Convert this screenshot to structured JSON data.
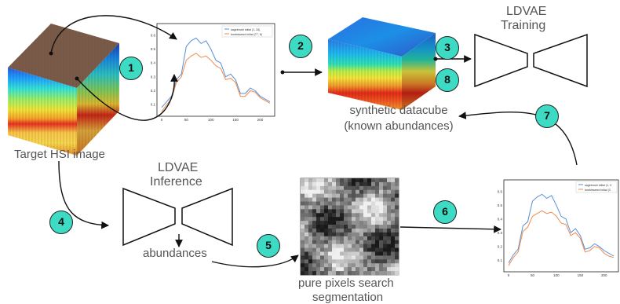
{
  "labels": {
    "target": "Target HSI image",
    "synthetic_line1": "synthetic  datacube",
    "synthetic_line2": "(known abundances)",
    "training_line1": "LDVAE",
    "training_line2": "Training",
    "inference_line1": "LDVAE",
    "inference_line2": "Inference",
    "abundances": "abundances",
    "pure_line1": "pure pixels search",
    "pure_line2": "segmentation"
  },
  "steps": [
    "1",
    "2",
    "3",
    "4",
    "5",
    "6",
    "7",
    "8"
  ],
  "colors": {
    "badge": "#3ddbc3",
    "series_a": "#5b8fd6",
    "series_b": "#f08a4b",
    "text": "#555555"
  },
  "plot1": {
    "legend": [
      "sagebrush initial (1, 33)",
      "tumbleweed initial (77, 6)"
    ],
    "yticks": [
      "0.6",
      "0.5",
      "0.4",
      "0.3",
      "0.2",
      "0.1"
    ],
    "xticks": [
      "0",
      "50",
      "100",
      "150",
      "200"
    ]
  },
  "plot2": {
    "legend": [
      "sagebrush initial (1, 3",
      "tumbleweed initial (3"
    ],
    "yticks": [
      "0.6",
      "0.5",
      "0.4",
      "0.3",
      "0.2",
      "0.1"
    ],
    "xticks": [
      "0",
      "50",
      "100",
      "150",
      "200"
    ]
  },
  "chart_data": [
    {
      "type": "line",
      "x": [
        0,
        10,
        20,
        30,
        40,
        50,
        60,
        70,
        80,
        90,
        100,
        110,
        120,
        130,
        140,
        150,
        160,
        170,
        180,
        190,
        200,
        210,
        220
      ],
      "series": [
        {
          "name": "sagebrush initial (1, 33)",
          "values": [
            0.08,
            0.12,
            0.16,
            0.28,
            0.32,
            0.52,
            0.56,
            0.58,
            0.54,
            0.56,
            0.5,
            0.42,
            0.4,
            0.3,
            0.32,
            0.28,
            0.18,
            0.18,
            0.22,
            0.2,
            0.16,
            0.14,
            0.12
          ]
        },
        {
          "name": "tumbleweed initial (77, 6)",
          "values": [
            0.05,
            0.1,
            0.14,
            0.26,
            0.3,
            0.42,
            0.45,
            0.47,
            0.44,
            0.45,
            0.42,
            0.38,
            0.36,
            0.28,
            0.29,
            0.26,
            0.16,
            0.16,
            0.2,
            0.19,
            0.15,
            0.13,
            0.11
          ]
        }
      ],
      "ylim": [
        0.05,
        0.65
      ],
      "xlim": [
        0,
        220
      ]
    },
    {
      "type": "line",
      "x": [
        0,
        10,
        20,
        30,
        40,
        50,
        60,
        70,
        80,
        90,
        100,
        110,
        120,
        130,
        140,
        150,
        160,
        170,
        180,
        190,
        200,
        210,
        220
      ],
      "series": [
        {
          "name": "sagebrush initial (1, 3",
          "values": [
            0.08,
            0.14,
            0.18,
            0.35,
            0.38,
            0.53,
            0.56,
            0.58,
            0.55,
            0.57,
            0.5,
            0.42,
            0.4,
            0.3,
            0.33,
            0.28,
            0.18,
            0.19,
            0.22,
            0.2,
            0.17,
            0.15,
            0.13
          ]
        },
        {
          "name": "tumbleweed initial (3",
          "values": [
            0.06,
            0.12,
            0.16,
            0.31,
            0.34,
            0.42,
            0.44,
            0.46,
            0.44,
            0.45,
            0.42,
            0.37,
            0.36,
            0.28,
            0.3,
            0.26,
            0.16,
            0.17,
            0.2,
            0.19,
            0.15,
            0.13,
            0.12
          ]
        }
      ],
      "ylim": [
        0.05,
        0.65
      ],
      "xlim": [
        0,
        220
      ]
    }
  ]
}
